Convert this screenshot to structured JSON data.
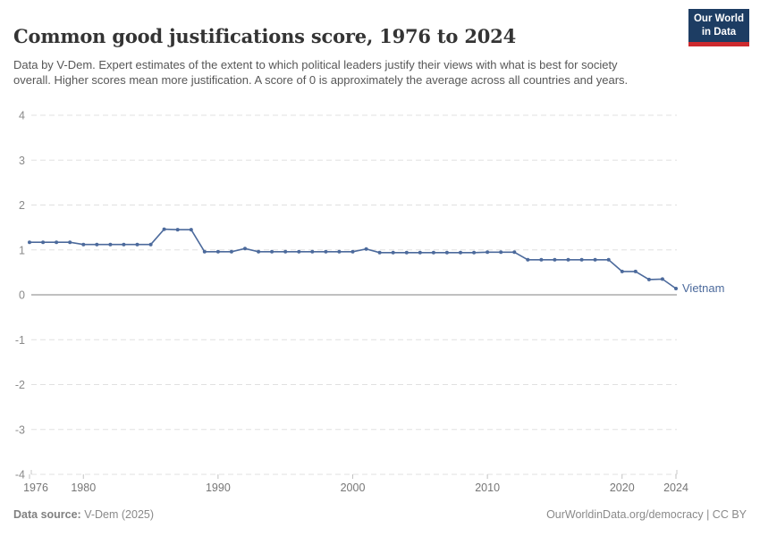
{
  "header": {
    "title": "Common good justifications score, 1976 to 2024",
    "subtitle": "Data by V-Dem. Expert estimates of the extent to which political leaders justify their views with what is best for society overall. Higher scores mean more justification. A score of 0 is approximately the average across all countries and years.",
    "logo": {
      "line1": "Our World",
      "line2": "in Data",
      "bg_color": "#1d3d63",
      "accent_color": "#cd2a2e"
    }
  },
  "chart_data": {
    "type": "line",
    "title": "Common good justifications score, 1976 to 2024",
    "xlabel": "",
    "ylabel": "",
    "xlim": [
      1976,
      2024
    ],
    "ylim": [
      -4,
      4
    ],
    "xticks": [
      1976,
      1980,
      1990,
      2000,
      2010,
      2020,
      2024
    ],
    "yticks": [
      4,
      3,
      2,
      1,
      0,
      -1,
      -2,
      -3,
      -4
    ],
    "grid": "dashed-horizontal",
    "zero_line": true,
    "legend_position": "end-of-line-label",
    "colors": {
      "line": "#4c6a9c",
      "gridline": "#e0e0e0",
      "zero_line": "#ababab",
      "axis_tick_label": "#8a8a8a"
    },
    "series": [
      {
        "name": "Vietnam",
        "color": "#4c6a9c",
        "x": [
          1976,
          1977,
          1978,
          1979,
          1980,
          1981,
          1982,
          1983,
          1984,
          1985,
          1986,
          1987,
          1988,
          1989,
          1990,
          1991,
          1992,
          1993,
          1994,
          1995,
          1996,
          1997,
          1998,
          1999,
          2000,
          2001,
          2002,
          2003,
          2004,
          2005,
          2006,
          2007,
          2008,
          2009,
          2010,
          2011,
          2012,
          2013,
          2014,
          2015,
          2016,
          2017,
          2018,
          2019,
          2020,
          2021,
          2022,
          2023,
          2024
        ],
        "values": [
          1.17,
          1.17,
          1.17,
          1.17,
          1.12,
          1.12,
          1.12,
          1.12,
          1.12,
          1.12,
          1.46,
          1.45,
          1.45,
          0.96,
          0.96,
          0.96,
          1.03,
          0.96,
          0.96,
          0.96,
          0.96,
          0.96,
          0.96,
          0.96,
          0.96,
          1.02,
          0.94,
          0.94,
          0.94,
          0.94,
          0.94,
          0.94,
          0.94,
          0.94,
          0.95,
          0.95,
          0.95,
          0.78,
          0.78,
          0.78,
          0.78,
          0.78,
          0.78,
          0.78,
          0.52,
          0.52,
          0.34,
          0.35,
          0.14
        ]
      }
    ]
  },
  "footer": {
    "source_label": "Data source:",
    "source_value": " V-Dem (2025)",
    "link": "OurWorldinData.org/democracy | CC BY"
  }
}
